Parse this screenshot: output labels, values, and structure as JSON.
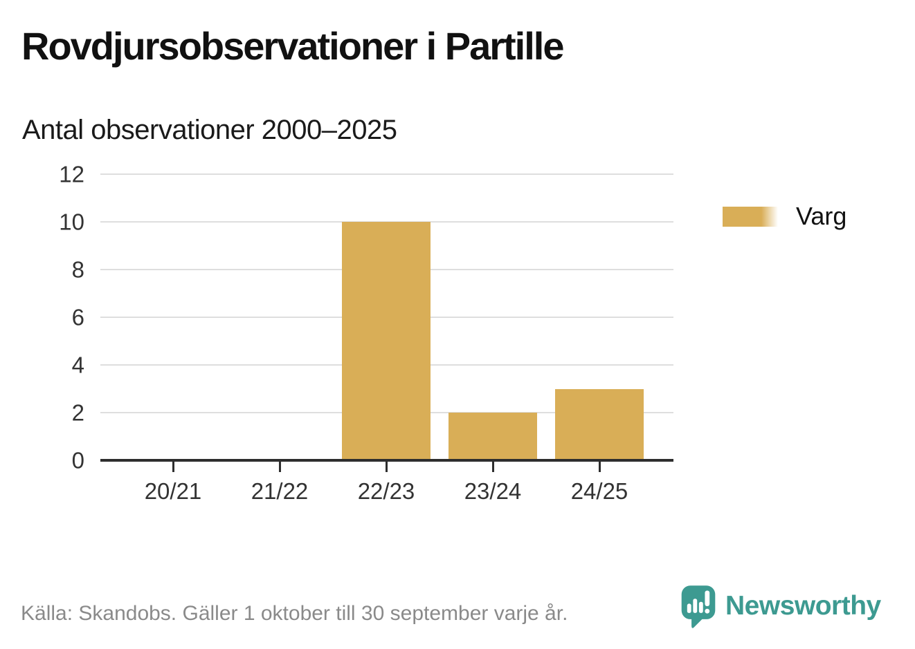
{
  "header": {
    "title": "Rovdjursobservationer i Partille",
    "subtitle": "Antal observationer 2000–2025"
  },
  "legend": {
    "label": "Varg"
  },
  "footer": {
    "source": "Källa: Skandobs. Gäller 1 oktober till 30 september varje år.",
    "brand": "Newsworthy"
  },
  "colors": {
    "bar": "#d9ae57",
    "axis": "#2e2e2e",
    "grid": "#dedede",
    "tick_text": "#333333",
    "muted_text": "#8a8a8a",
    "brand_teal": "#3d9a91"
  },
  "chart_data": {
    "type": "bar",
    "title": "Rovdjursobservationer i Partille",
    "subtitle": "Antal observationer 2000–2025",
    "categories": [
      "20/21",
      "21/22",
      "22/23",
      "23/24",
      "24/25"
    ],
    "series": [
      {
        "name": "Varg",
        "color": "#d9ae57",
        "values": [
          0,
          0,
          10,
          2,
          3
        ]
      }
    ],
    "xlabel": "",
    "ylabel": "",
    "ylim": [
      0,
      12
    ],
    "yticks": [
      0,
      2,
      4,
      6,
      8,
      10,
      12
    ],
    "grid": true,
    "legend_position": "right"
  }
}
